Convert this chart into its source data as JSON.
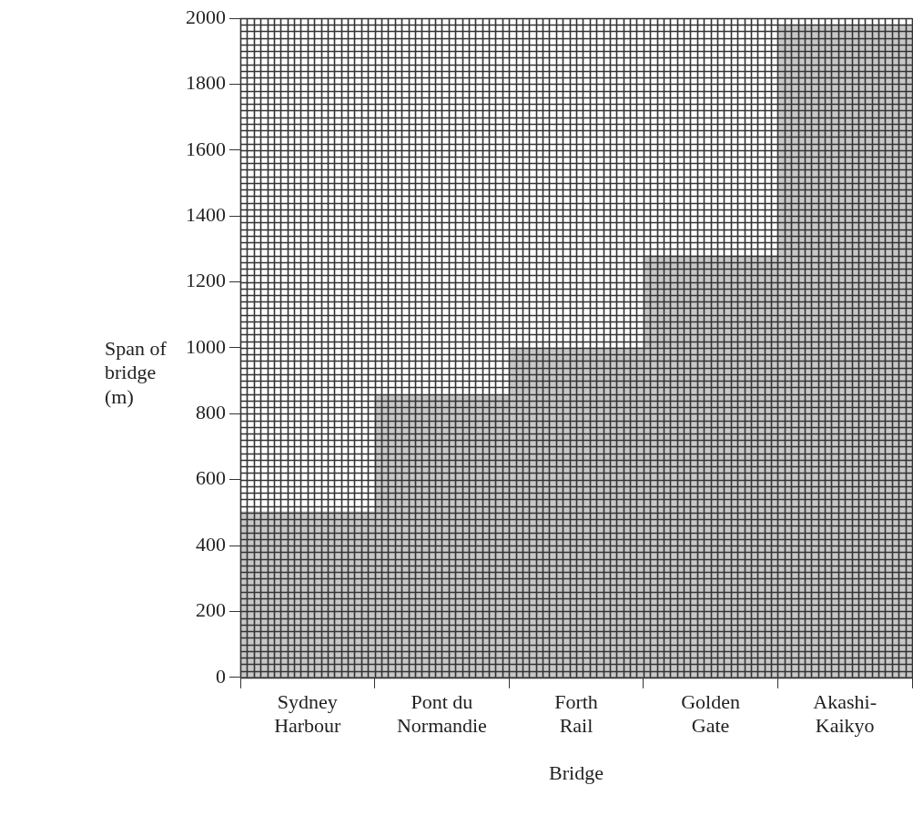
{
  "chart_data": {
    "type": "bar",
    "xlabel": "Bridge",
    "ylabel": "Span of bridge (m)",
    "categories": [
      "Sydney Harbour",
      "Pont du Normandie",
      "Forth Rail",
      "Golden Gate",
      "Akashi-Kaikyo"
    ],
    "values": [
      503,
      856,
      1000,
      1280,
      1980
    ],
    "color": "#c8c8c8",
    "ylim": [
      0,
      2000
    ],
    "yticks": [
      0,
      200,
      400,
      600,
      800,
      1000,
      1200,
      1400,
      1600,
      1800,
      2000
    ],
    "grid": true,
    "legend": false
  }
}
